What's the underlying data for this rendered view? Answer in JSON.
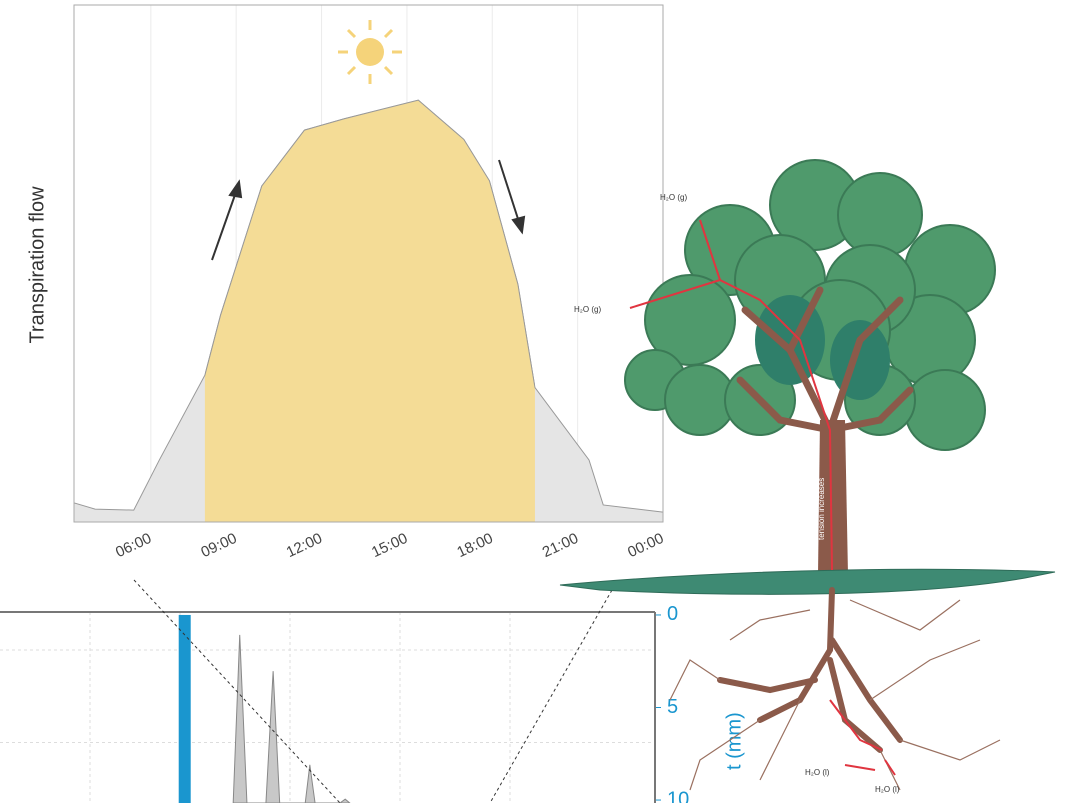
{
  "chart_data": [
    {
      "type": "area",
      "ylabel": "Transpiration flow",
      "x": [
        3.3,
        4.04,
        5.4,
        6.3,
        7.9,
        8.45,
        9.9,
        11.4,
        12.8,
        15.4,
        17,
        17.9,
        18.9,
        19.5,
        21.4,
        21.9,
        24
      ],
      "values": [
        3.7,
        2.5,
        2.3,
        12,
        28.4,
        40,
        65,
        75.8,
        78,
        81.6,
        74,
        66,
        46,
        26,
        12,
        3.3,
        1.9
      ],
      "color": "#e5e5e5",
      "highlight_color": "#f4dc96",
      "highlight_range": [
        7.9,
        19.5
      ],
      "xlim": [
        3.3,
        24
      ],
      "ylim": [
        0,
        100
      ],
      "xticks": [
        {
          "value": 6,
          "label": "06:00"
        },
        {
          "value": 9,
          "label": "09:00"
        },
        {
          "value": 12,
          "label": "12:00"
        },
        {
          "value": 15,
          "label": "15:00"
        },
        {
          "value": 18,
          "label": "18:00"
        },
        {
          "value": 21,
          "label": "21:00"
        },
        {
          "value": 24,
          "label": "00:00"
        }
      ],
      "grid": true
    },
    {
      "type": "combo",
      "y2label": "t (mm)",
      "bars": {
        "x": [
          28.2
        ],
        "values": [
          12
        ],
        "color": "#1a96cf",
        "axis": "y2"
      },
      "series": [
        {
          "x": [
            35.6,
            36.6,
            37.7,
            40.6,
            41.7,
            42.7,
            46.6,
            47.3,
            48.1,
            51.9,
            52.7,
            53.4
          ],
          "values": [
            0,
            88,
            0,
            0,
            69,
            0,
            0,
            20,
            0,
            0,
            2,
            0
          ],
          "color": "#c8c8c8"
        }
      ],
      "xlim": [
        0,
        100
      ],
      "ylim": [
        0,
        100
      ],
      "y2lim": [
        -0.16,
        10.16
      ],
      "y2ticks": [
        0,
        5,
        10
      ],
      "y2color": "#1a96cf",
      "grid": true
    }
  ],
  "illustration": {
    "labels": [
      "H₂O (g)",
      "H₂O (g)",
      "tension increases",
      "with height",
      "H₂O (l)",
      "H₂O (l)"
    ]
  }
}
